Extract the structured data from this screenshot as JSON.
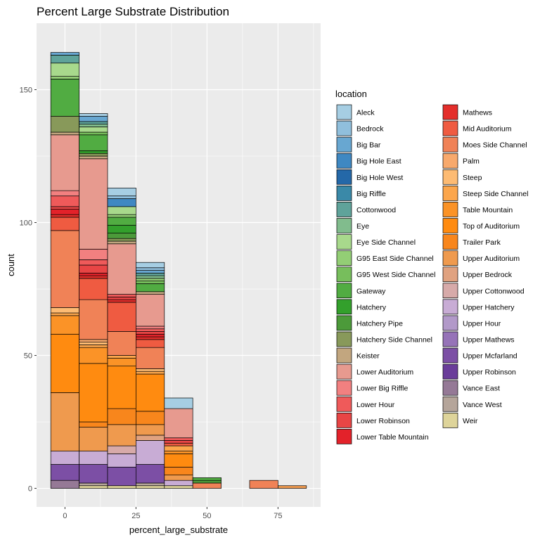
{
  "chart_data": {
    "type": "bar",
    "subtype": "stacked-histogram",
    "title": "Percent Large Substrate Distribution",
    "xlabel": "percent_large_substrate",
    "ylabel": "count",
    "xlim": [
      -10,
      90
    ],
    "ylim": [
      -7,
      175
    ],
    "x_ticks": [
      0,
      25,
      50,
      75
    ],
    "y_ticks": [
      0,
      50,
      100,
      150
    ],
    "bin_width": 10,
    "bin_centers": [
      0,
      10,
      20,
      30,
      40,
      50,
      60,
      70,
      80
    ],
    "grid": true,
    "legend": {
      "title": "location",
      "placement": "right",
      "columns": 2
    },
    "series": [
      {
        "name": "Aleck",
        "color": "#a6cee3",
        "values": [
          0,
          1,
          3,
          2,
          4,
          0,
          0,
          0,
          0
        ]
      },
      {
        "name": "Bedrock",
        "color": "#90bfdc",
        "values": [
          0,
          0,
          1,
          1,
          0,
          0,
          0,
          0,
          0
        ]
      },
      {
        "name": "Big Bar",
        "color": "#68a7d1",
        "values": [
          1,
          2,
          0,
          1,
          0,
          0,
          0,
          0,
          0
        ]
      },
      {
        "name": "Big Hole East",
        "color": "#3f88c2",
        "values": [
          0,
          0,
          3,
          0,
          0,
          0,
          0,
          0,
          0
        ]
      },
      {
        "name": "Big Hole West",
        "color": "#2468a8",
        "values": [
          0,
          0,
          0,
          0,
          0,
          0,
          0,
          0,
          0
        ]
      },
      {
        "name": "Big Riffle",
        "color": "#3a89a8",
        "values": [
          0,
          0,
          0,
          0,
          0,
          0,
          0,
          0,
          0
        ]
      },
      {
        "name": "Cottonwood",
        "color": "#5fa39a",
        "values": [
          3,
          1,
          0,
          1,
          0,
          0,
          0,
          0,
          0
        ]
      },
      {
        "name": "Eye",
        "color": "#81bc8d",
        "values": [
          0,
          1,
          0,
          1,
          0,
          0,
          0,
          0,
          0
        ]
      },
      {
        "name": "Eye Side Channel",
        "color": "#a8d98c",
        "values": [
          5,
          2,
          3,
          0,
          0,
          0,
          0,
          0,
          0
        ]
      },
      {
        "name": "G95 East Side Channel",
        "color": "#93ce75",
        "values": [
          1,
          0,
          1,
          1,
          0,
          0,
          0,
          0,
          0
        ]
      },
      {
        "name": "G95 West Side Channel",
        "color": "#77be5c",
        "values": [
          0,
          1,
          0,
          1,
          0,
          0,
          0,
          0,
          0
        ]
      },
      {
        "name": "Gateway",
        "color": "#51ac42",
        "values": [
          14,
          6,
          3,
          3,
          0,
          1,
          0,
          0,
          0
        ]
      },
      {
        "name": "Hatchery",
        "color": "#33a02c",
        "values": [
          0,
          1,
          3,
          0,
          0,
          0,
          0,
          0,
          0
        ]
      },
      {
        "name": "Hatchery Pipe",
        "color": "#4c9a3a",
        "values": [
          0,
          0,
          2,
          0,
          0,
          1,
          0,
          0,
          0
        ]
      },
      {
        "name": "Hatchery Side Channel",
        "color": "#88995a",
        "values": [
          6,
          1,
          1,
          0,
          0,
          0,
          0,
          0,
          0
        ]
      },
      {
        "name": "Keister",
        "color": "#c2a67f",
        "values": [
          1,
          1,
          1,
          1,
          0,
          0,
          0,
          0,
          0
        ]
      },
      {
        "name": "Lower Auditorium",
        "color": "#e79a8f",
        "values": [
          21,
          34,
          19,
          12,
          11,
          0,
          0,
          0,
          0
        ]
      },
      {
        "name": "Lower Big Riffle",
        "color": "#f28080",
        "values": [
          2,
          4,
          0,
          1,
          0,
          0,
          0,
          0,
          0
        ]
      },
      {
        "name": "Lower Hour",
        "color": "#ef5a5a",
        "values": [
          4,
          2,
          1,
          1,
          1,
          0,
          0,
          0,
          0
        ]
      },
      {
        "name": "Lower Robinson",
        "color": "#e84545",
        "values": [
          1,
          3,
          1,
          1,
          1,
          0,
          0,
          0,
          0
        ]
      },
      {
        "name": "Lower Table Mountain",
        "color": "#e3222a",
        "values": [
          2,
          1,
          0,
          1,
          0,
          0,
          0,
          0,
          0
        ]
      },
      {
        "name": "Mathews",
        "color": "#e42e2b",
        "values": [
          1,
          1,
          1,
          1,
          0,
          0,
          0,
          0,
          0
        ]
      },
      {
        "name": "Mid Auditorium",
        "color": "#ef5b41",
        "values": [
          5,
          8,
          11,
          3,
          1,
          0,
          0,
          0,
          0
        ]
      },
      {
        "name": "Moes Side Channel",
        "color": "#f08257",
        "values": [
          29,
          15,
          9,
          8,
          0,
          2,
          0,
          3,
          0
        ]
      },
      {
        "name": "Palm",
        "color": "#f8a96c",
        "values": [
          0,
          1,
          0,
          0,
          0,
          0,
          0,
          0,
          0
        ]
      },
      {
        "name": "Steep",
        "color": "#fdbb73",
        "values": [
          2,
          1,
          0,
          1,
          0,
          0,
          0,
          0,
          0
        ]
      },
      {
        "name": "Steep Side Channel",
        "color": "#fca64c",
        "values": [
          1,
          1,
          1,
          1,
          2,
          0,
          0,
          0,
          0
        ]
      },
      {
        "name": "Table Mountain",
        "color": "#fb9327",
        "values": [
          7,
          6,
          3,
          0,
          1,
          0,
          0,
          0,
          0
        ]
      },
      {
        "name": "Top of Auditorium",
        "color": "#ff8b10",
        "values": [
          22,
          22,
          16,
          14,
          5,
          0,
          0,
          0,
          0
        ]
      },
      {
        "name": "Trailer Park",
        "color": "#f8861c",
        "values": [
          0,
          2,
          6,
          5,
          3,
          0,
          0,
          0,
          0
        ]
      },
      {
        "name": "Upper Auditorium",
        "color": "#ef9a4e",
        "values": [
          22,
          9,
          8,
          4,
          2,
          0,
          0,
          0,
          1
        ]
      },
      {
        "name": "Upper Bedrock",
        "color": "#e0a280",
        "values": [
          0,
          0,
          0,
          2,
          0,
          0,
          0,
          0,
          0
        ]
      },
      {
        "name": "Upper Cottonwood",
        "color": "#d7aaa9",
        "values": [
          0,
          0,
          3,
          0,
          0,
          0,
          0,
          0,
          0
        ]
      },
      {
        "name": "Upper Hatchery",
        "color": "#c8acd5",
        "values": [
          5,
          5,
          5,
          9,
          2,
          0,
          0,
          0,
          0
        ]
      },
      {
        "name": "Upper Hour",
        "color": "#b299c9",
        "values": [
          0,
          0,
          0,
          0,
          0,
          0,
          0,
          0,
          0
        ]
      },
      {
        "name": "Upper Mathews",
        "color": "#9673b8",
        "values": [
          0,
          0,
          0,
          0,
          0,
          0,
          0,
          0,
          0
        ]
      },
      {
        "name": "Upper Mcfarland",
        "color": "#7c4fa5",
        "values": [
          6,
          7,
          7,
          7,
          0,
          0,
          0,
          0,
          0
        ]
      },
      {
        "name": "Upper Robinson",
        "color": "#6a3d9a",
        "values": [
          0,
          0,
          0,
          0,
          0,
          0,
          0,
          0,
          0
        ]
      },
      {
        "name": "Vance East",
        "color": "#957996",
        "values": [
          3,
          0,
          0,
          0,
          0,
          0,
          0,
          0,
          0
        ]
      },
      {
        "name": "Vance West",
        "color": "#b5a59a",
        "values": [
          0,
          1,
          0,
          1,
          0,
          0,
          0,
          0,
          0
        ]
      },
      {
        "name": "Weir",
        "color": "#ded49a",
        "values": [
          0,
          1,
          1,
          1,
          1,
          0,
          0,
          0,
          0
        ]
      }
    ]
  }
}
